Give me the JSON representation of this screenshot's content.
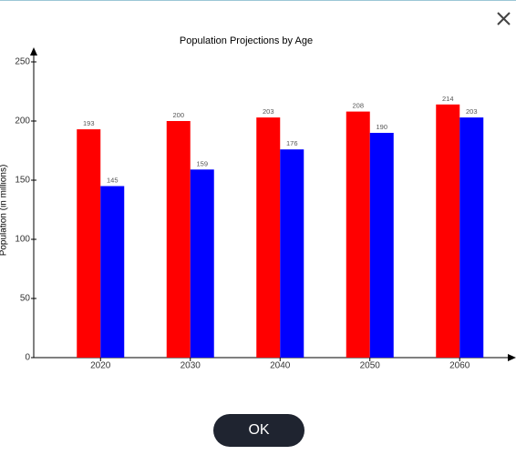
{
  "chart_data": {
    "type": "bar",
    "title": "Population Projections by Age",
    "y_label": "Population (in millions)",
    "categories": [
      "2020",
      "2030",
      "2040",
      "2050",
      "2060"
    ],
    "series": [
      {
        "color": "#ff0000",
        "values": [
          193,
          200,
          203,
          208,
          214
        ]
      },
      {
        "color": "#0000ff",
        "values": [
          145,
          159,
          176,
          190,
          203
        ]
      }
    ],
    "ylim": [
      0,
      250
    ],
    "yticks": [
      0,
      50,
      100,
      150,
      200,
      250
    ],
    "grid": false
  },
  "button": "OK"
}
